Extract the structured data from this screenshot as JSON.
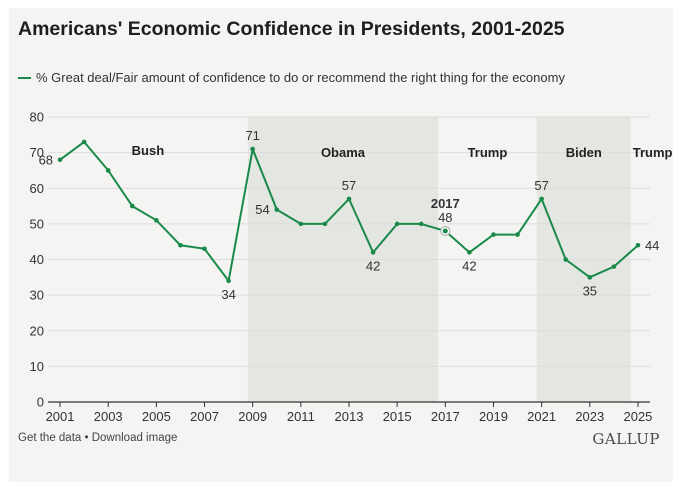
{
  "title": "Americans' Economic Confidence in Presidents, 2001-2025",
  "footer": {
    "get_data": "Get the data",
    "separator": " • ",
    "download": "Download image",
    "brand": "GALLUP"
  },
  "colors": {
    "line": "#1a8a4a",
    "shade": "#e3e6e1",
    "grid": "#dcdcdc"
  },
  "chart_data": {
    "type": "line",
    "title": "Americans' Economic Confidence in Presidents, 2001-2025",
    "xlabel": "",
    "ylabel": "",
    "ylim": [
      0,
      80
    ],
    "xlim": [
      2000.5,
      2025.5
    ],
    "yticks": [
      0,
      10,
      20,
      30,
      40,
      50,
      60,
      70,
      80
    ],
    "xticks": [
      2001,
      2003,
      2005,
      2007,
      2009,
      2011,
      2013,
      2015,
      2017,
      2019,
      2021,
      2023,
      2025
    ],
    "grid": true,
    "legend_position": "top-left",
    "series": [
      {
        "name": "% Great deal/Fair amount of confidence to do or recommend the right thing for the economy",
        "x": [
          2001,
          2002,
          2003,
          2004,
          2005,
          2006,
          2007,
          2008,
          2009,
          2010,
          2011,
          2012,
          2013,
          2014,
          2015,
          2016,
          2017,
          2018,
          2019,
          2020,
          2021,
          2022,
          2023,
          2024,
          2025
        ],
        "values": [
          68,
          73,
          65,
          55,
          51,
          44,
          43,
          34,
          71,
          54,
          50,
          50,
          57,
          42,
          50,
          50,
          48,
          42,
          47,
          47,
          57,
          40,
          35,
          38,
          44
        ]
      }
    ],
    "eras": [
      {
        "label": "Bush",
        "start": 2000.5,
        "end": 2008.8,
        "shaded": false
      },
      {
        "label": "Obama",
        "start": 2008.8,
        "end": 2016.7,
        "shaded": true
      },
      {
        "label": "Trump",
        "start": 2016.7,
        "end": 2020.8,
        "shaded": false
      },
      {
        "label": "Biden",
        "start": 2020.8,
        "end": 2024.7,
        "shaded": true
      },
      {
        "label": "Trump",
        "start": 2024.7,
        "end": 2025.5,
        "shaded": false
      }
    ],
    "annotations": [
      {
        "x": 2001,
        "y": 68,
        "text": "68",
        "pos": "left"
      },
      {
        "x": 2008,
        "y": 34,
        "text": "34",
        "pos": "below"
      },
      {
        "x": 2009,
        "y": 71,
        "text": "71",
        "pos": "above"
      },
      {
        "x": 2010,
        "y": 54,
        "text": "54",
        "pos": "left"
      },
      {
        "x": 2013,
        "y": 57,
        "text": "57",
        "pos": "above"
      },
      {
        "x": 2014,
        "y": 42,
        "text": "42",
        "pos": "below"
      },
      {
        "x": 2017,
        "y": 48,
        "text": "48",
        "pos": "above"
      },
      {
        "x": 2017,
        "y": 48,
        "text": "2017",
        "pos": "above2",
        "bold": true
      },
      {
        "x": 2018,
        "y": 42,
        "text": "42",
        "pos": "below"
      },
      {
        "x": 2021,
        "y": 57,
        "text": "57",
        "pos": "above"
      },
      {
        "x": 2023,
        "y": 35,
        "text": "35",
        "pos": "below"
      },
      {
        "x": 2025,
        "y": 44,
        "text": "44",
        "pos": "right"
      }
    ],
    "highlight_x": 2017
  }
}
